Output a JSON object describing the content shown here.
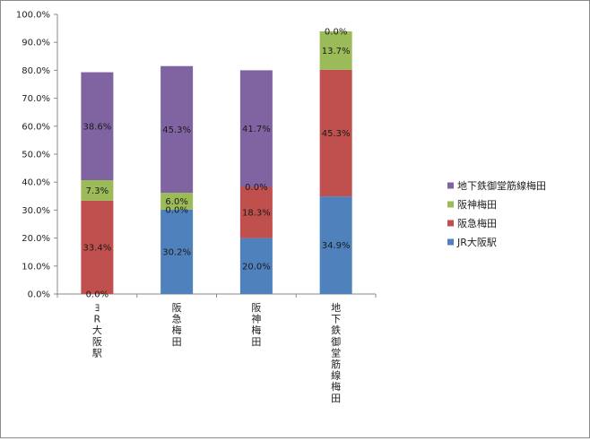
{
  "chart_data": {
    "type": "bar",
    "stacked": true,
    "categories": [
      "JR大阪駅",
      "阪急梅田",
      "阪神梅田",
      "地下鉄御堂筋線梅田"
    ],
    "category_display": [
      "ﾖR大阪駅",
      "阪急梅田",
      "阪神梅田",
      "地下鉄御堂筋線梅田"
    ],
    "series": [
      {
        "name": "JR大阪駅",
        "color": "#4f81bd",
        "values": [
          0.0,
          30.2,
          20.0,
          34.9
        ]
      },
      {
        "name": "阪急梅田",
        "color": "#c0504d",
        "values": [
          33.4,
          0.0,
          18.3,
          45.3
        ]
      },
      {
        "name": "阪神梅田",
        "color": "#9bbb59",
        "values": [
          7.3,
          6.0,
          0.0,
          13.7
        ]
      },
      {
        "name": "地下鉄御堂筋線梅田",
        "color": "#8064a2",
        "values": [
          38.6,
          45.3,
          41.7,
          0.0
        ]
      }
    ],
    "data_labels": [
      [
        "0.0%",
        "30.2%",
        "20.0%",
        "34.9%"
      ],
      [
        "33.4%",
        "0.0%",
        "18.3%",
        "45.3%"
      ],
      [
        "7.3%",
        "6.0%",
        "0.0%",
        "13.7%"
      ],
      [
        "38.6%",
        "45.3%",
        "41.7%",
        "0.0%"
      ]
    ],
    "ylim": [
      0,
      100
    ],
    "yticks": [
      0,
      10,
      20,
      30,
      40,
      50,
      60,
      70,
      80,
      90,
      100
    ],
    "ytick_labels": [
      "0.0%",
      "10.0%",
      "20.0%",
      "30.0%",
      "40.0%",
      "50.0%",
      "60.0%",
      "70.0%",
      "80.0%",
      "90.0%",
      "100.0%"
    ],
    "title": "",
    "xlabel": "",
    "ylabel": "",
    "grid": false,
    "legend_position": "right",
    "legend_order": [
      3,
      2,
      1,
      0
    ]
  }
}
